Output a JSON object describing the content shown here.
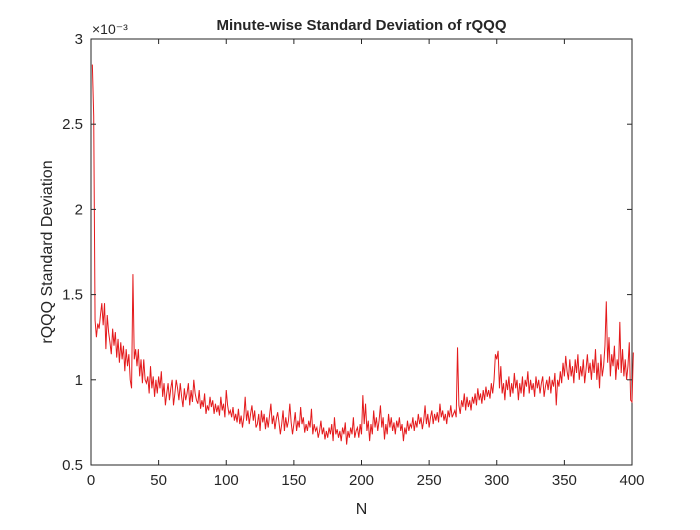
{
  "chart_data": {
    "type": "line",
    "title": "Minute-wise Standard Deviation of rQQQ",
    "xlabel": "N",
    "ylabel": "rQQQ Standard Deviation",
    "xlim": [
      0,
      400
    ],
    "ylim": [
      0.0005,
      0.003
    ],
    "xticks": [
      0,
      50,
      100,
      150,
      200,
      250,
      300,
      350,
      400
    ],
    "yticks": [
      0.0005,
      0.001,
      0.0015,
      0.002,
      0.0025,
      0.003
    ],
    "xtick_labels": [
      "0",
      "50",
      "100",
      "150",
      "200",
      "250",
      "300",
      "350",
      "400"
    ],
    "ytick_labels": [
      "0.5",
      "1",
      "1.5",
      "2",
      "2.5",
      "3"
    ],
    "y_exponent_label": "×10⁻³",
    "grid": false,
    "line_color": "#e41a1c",
    "series": [
      {
        "values": [
          0.00285,
          0.00255,
          0.00135,
          0.00125,
          0.00133,
          0.0013,
          0.00138,
          0.00145,
          0.00132,
          0.00145,
          0.00118,
          0.00138,
          0.00128,
          0.00122,
          0.00115,
          0.0013,
          0.0012,
          0.00128,
          0.00113,
          0.00124,
          0.0011,
          0.00122,
          0.00112,
          0.0012,
          0.00105,
          0.00118,
          0.00108,
          0.00115,
          0.001,
          0.00095,
          0.00162,
          0.00112,
          0.00118,
          0.00108,
          0.00118,
          0.00102,
          0.00112,
          0.00098,
          0.00112,
          0.001,
          0.00098,
          0.00102,
          0.00092,
          0.00108,
          0.00095,
          0.00102,
          0.0009,
          0.001,
          0.00092,
          0.00102,
          0.00095,
          0.00105,
          0.0009,
          0.00098,
          0.00085,
          0.00092,
          0.00098,
          0.00088,
          0.00095,
          0.001,
          0.00085,
          0.00092,
          0.001,
          0.00095,
          0.00088,
          0.00098,
          0.0009,
          0.00084,
          0.00095,
          0.00088,
          0.00092,
          0.00098,
          0.00085,
          0.00094,
          0.00087,
          0.001,
          0.00092,
          0.00088,
          0.00086,
          0.00094,
          0.00083,
          0.00088,
          0.00084,
          0.00092,
          0.0008,
          0.00085,
          0.00082,
          0.0009,
          0.00084,
          0.00088,
          0.0008,
          0.00086,
          0.00081,
          0.00085,
          0.00079,
          0.0009,
          0.00082,
          0.00086,
          0.00078,
          0.00094,
          0.00085,
          0.0008,
          0.00082,
          0.00078,
          0.00084,
          0.00076,
          0.0008,
          0.00075,
          0.00083,
          0.00074,
          0.00079,
          0.00072,
          0.00078,
          0.0009,
          0.00076,
          0.00082,
          0.00074,
          0.0008,
          0.00085,
          0.00076,
          0.00082,
          0.00072,
          0.00074,
          0.0008,
          0.0007,
          0.00082,
          0.00075,
          0.0008,
          0.00071,
          0.00078,
          0.00072,
          0.00079,
          0.00086,
          0.00074,
          0.00079,
          0.00071,
          0.00077,
          0.00081,
          0.00075,
          0.00068,
          0.00074,
          0.00082,
          0.0007,
          0.00078,
          0.00072,
          0.00076,
          0.00086,
          0.00075,
          0.00068,
          0.00074,
          0.00081,
          0.0007,
          0.00076,
          0.00072,
          0.00084,
          0.00074,
          0.00078,
          0.00069,
          0.00074,
          0.0007,
          0.00076,
          0.00072,
          0.00083,
          0.00068,
          0.00074,
          0.0007,
          0.00072,
          0.00066,
          0.0007,
          0.00076,
          0.00068,
          0.00072,
          0.00065,
          0.0007,
          0.00066,
          0.00072,
          0.00068,
          0.00074,
          0.00064,
          0.00078,
          0.00068,
          0.00071,
          0.00066,
          0.0007,
          0.00064,
          0.00072,
          0.00068,
          0.00075,
          0.00062,
          0.0007,
          0.00066,
          0.00072,
          0.00068,
          0.00078,
          0.00066,
          0.0007,
          0.00072,
          0.00066,
          0.00074,
          0.00068,
          0.00091,
          0.00074,
          0.00086,
          0.0007,
          0.00076,
          0.00064,
          0.00074,
          0.00068,
          0.00082,
          0.00072,
          0.00078,
          0.0007,
          0.00076,
          0.00085,
          0.00072,
          0.00078,
          0.00065,
          0.00074,
          0.00068,
          0.0008,
          0.00072,
          0.00078,
          0.0007,
          0.00075,
          0.00068,
          0.00076,
          0.00072,
          0.00078,
          0.0007,
          0.00074,
          0.00064,
          0.00072,
          0.00068,
          0.00076,
          0.0007,
          0.00074,
          0.00072,
          0.00078,
          0.0007,
          0.00076,
          0.00072,
          0.0008,
          0.00074,
          0.00078,
          0.00071,
          0.00076,
          0.00085,
          0.00074,
          0.0008,
          0.00072,
          0.00078,
          0.00082,
          0.00074,
          0.0008,
          0.00076,
          0.00081,
          0.00075,
          0.00086,
          0.00078,
          0.00082,
          0.00076,
          0.0008,
          0.00074,
          0.00082,
          0.00078,
          0.00085,
          0.00078,
          0.0008,
          0.00082,
          0.00078,
          0.00119,
          0.00085,
          0.0008,
          0.00088,
          0.00084,
          0.00092,
          0.00082,
          0.0009,
          0.00084,
          0.00088,
          0.00082,
          0.0009,
          0.00086,
          0.00092,
          0.00085,
          0.00095,
          0.00088,
          0.00092,
          0.00086,
          0.00094,
          0.00088,
          0.00096,
          0.0009,
          0.00094,
          0.00089,
          0.00098,
          0.00092,
          0.001,
          0.00115,
          0.00112,
          0.00117,
          0.00095,
          0.00108,
          0.00092,
          0.00098,
          0.00088,
          0.001,
          0.00094,
          0.00102,
          0.0009,
          0.00098,
          0.00092,
          0.00104,
          0.00095,
          0.001,
          0.00088,
          0.00098,
          0.00092,
          0.00102,
          0.0009,
          0.001,
          0.00096,
          0.00105,
          0.00092,
          0.001,
          0.00094,
          0.00098,
          0.0009,
          0.00102,
          0.00095,
          0.001,
          0.00092,
          0.00098,
          0.00102,
          0.0009,
          0.00096,
          0.001,
          0.00094,
          0.00102,
          0.00092,
          0.001,
          0.00096,
          0.00104,
          0.00085,
          0.001,
          0.00096,
          0.00105,
          0.00098,
          0.0011,
          0.00102,
          0.00114,
          0.00105,
          0.001,
          0.00112,
          0.00102,
          0.00108,
          0.00098,
          0.00112,
          0.00104,
          0.00115,
          0.001,
          0.00108,
          0.00102,
          0.00112,
          0.00098,
          0.00106,
          0.00115,
          0.00104,
          0.0011,
          0.001,
          0.00112,
          0.00104,
          0.00118,
          0.001,
          0.0011,
          0.00095,
          0.00115,
          0.00102,
          0.00108,
          0.0012,
          0.00146,
          0.0011,
          0.00125,
          0.00102,
          0.00115,
          0.00108,
          0.0012,
          0.001,
          0.00112,
          0.00106,
          0.00134,
          0.00104,
          0.00118,
          0.00102,
          0.00112,
          0.001,
          0.00108,
          0.00122,
          0.00088,
          0.00087,
          0.00116
        ]
      }
    ]
  }
}
